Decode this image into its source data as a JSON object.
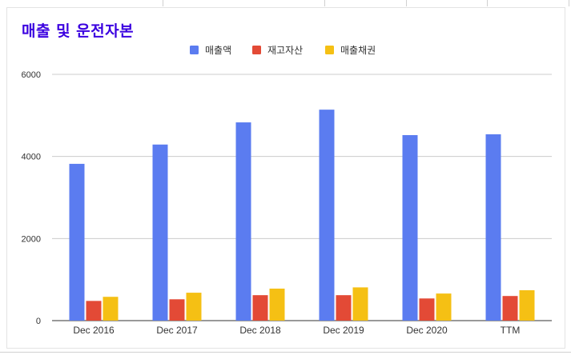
{
  "chart_data": {
    "type": "bar",
    "title": "매출 및 운전자본",
    "xlabel": "",
    "ylabel": "",
    "categories": [
      "Dec 2016",
      "Dec 2017",
      "Dec 2018",
      "Dec 2019",
      "Dec 2020",
      "TTM"
    ],
    "series": [
      {
        "name": "매출액",
        "color": "#5b7cf0",
        "values": [
          3820,
          4290,
          4830,
          5140,
          4520,
          4540
        ]
      },
      {
        "name": "재고자산",
        "color": "#e34a36",
        "values": [
          480,
          520,
          620,
          620,
          540,
          600
        ]
      },
      {
        "name": "매출채권",
        "color": "#f5c014",
        "values": [
          580,
          680,
          780,
          810,
          660,
          740
        ]
      }
    ],
    "ylim": [
      0,
      6000
    ],
    "yticks": [
      0,
      2000,
      4000,
      6000
    ],
    "grid": true,
    "legend": "top"
  }
}
